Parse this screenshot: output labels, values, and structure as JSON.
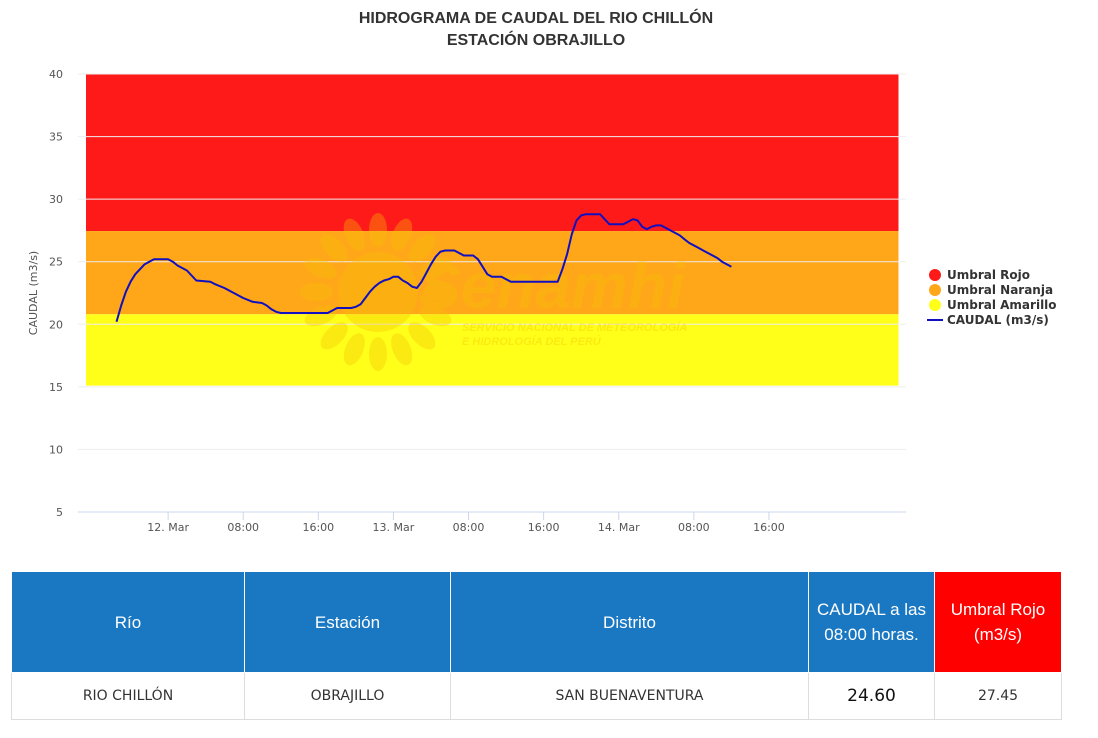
{
  "chart_data": {
    "type": "line",
    "title": "HIDROGRAMA DE CAUDAL DEL RIO CHILLÓN",
    "subtitle": "ESTACIÓN OBRAJILLO",
    "ylabel": "CAUDAL (m3/s)",
    "ylim": [
      5,
      40
    ],
    "yticks": [
      5,
      10,
      15,
      20,
      25,
      30,
      35,
      40
    ],
    "x_unit": "hours from 12 Mar 00:00",
    "xlim": [
      -9.6,
      78.6
    ],
    "xticks": [
      {
        "x": 0,
        "label": "12. Mar"
      },
      {
        "x": 8,
        "label": "08:00"
      },
      {
        "x": 16,
        "label": "16:00"
      },
      {
        "x": 24,
        "label": "13. Mar"
      },
      {
        "x": 32,
        "label": "08:00"
      },
      {
        "x": 40,
        "label": "16:00"
      },
      {
        "x": 48,
        "label": "14. Mar"
      },
      {
        "x": 56,
        "label": "08:00"
      },
      {
        "x": 64,
        "label": "16:00"
      }
    ],
    "bands": [
      {
        "name": "Umbral Rojo",
        "from": 27.45,
        "to": 40,
        "color": "#ff1a1a"
      },
      {
        "name": "Umbral Naranja",
        "from": 20.8,
        "to": 27.45,
        "color": "#ffa719"
      },
      {
        "name": "Umbral Amarillo",
        "from": 15.1,
        "to": 20.8,
        "color": "#ffff1a"
      }
    ],
    "bands_x_end": 77.8,
    "series": [
      {
        "name": "CAUDAL (m3/s)",
        "color": "#1010c0",
        "points": [
          [
            -5.5,
            20.2
          ],
          [
            -5.0,
            21.5
          ],
          [
            -4.5,
            22.6
          ],
          [
            -4.0,
            23.4
          ],
          [
            -3.5,
            24.0
          ],
          [
            -3.0,
            24.4
          ],
          [
            -2.5,
            24.8
          ],
          [
            -2.0,
            25.0
          ],
          [
            -1.5,
            25.2
          ],
          [
            -1.0,
            25.2
          ],
          [
            0.0,
            25.2
          ],
          [
            0.5,
            25.0
          ],
          [
            1.0,
            24.7
          ],
          [
            1.5,
            24.5
          ],
          [
            2.0,
            24.3
          ],
          [
            2.5,
            23.9
          ],
          [
            3.0,
            23.5
          ],
          [
            4.5,
            23.4
          ],
          [
            5.0,
            23.2
          ],
          [
            6.0,
            22.9
          ],
          [
            7.0,
            22.5
          ],
          [
            8.0,
            22.1
          ],
          [
            9.0,
            21.8
          ],
          [
            10.0,
            21.7
          ],
          [
            10.5,
            21.5
          ],
          [
            11.0,
            21.2
          ],
          [
            11.5,
            21.0
          ],
          [
            12.0,
            20.9
          ],
          [
            13.0,
            20.9
          ],
          [
            14.0,
            20.9
          ],
          [
            16.0,
            20.9
          ],
          [
            17.0,
            20.9
          ],
          [
            17.5,
            21.1
          ],
          [
            18.0,
            21.3
          ],
          [
            19.5,
            21.3
          ],
          [
            20.0,
            21.4
          ],
          [
            20.5,
            21.6
          ],
          [
            21.0,
            22.1
          ],
          [
            21.5,
            22.6
          ],
          [
            22.0,
            23.0
          ],
          [
            22.5,
            23.3
          ],
          [
            23.0,
            23.5
          ],
          [
            23.5,
            23.6
          ],
          [
            24.0,
            23.8
          ],
          [
            24.5,
            23.8
          ],
          [
            25.0,
            23.5
          ],
          [
            25.5,
            23.3
          ],
          [
            26.0,
            23.0
          ],
          [
            26.5,
            22.9
          ],
          [
            27.0,
            23.4
          ],
          [
            27.5,
            24.1
          ],
          [
            28.0,
            24.8
          ],
          [
            28.5,
            25.4
          ],
          [
            29.0,
            25.8
          ],
          [
            29.5,
            25.9
          ],
          [
            30.0,
            25.9
          ],
          [
            30.5,
            25.9
          ],
          [
            31.0,
            25.7
          ],
          [
            31.5,
            25.5
          ],
          [
            32.0,
            25.5
          ],
          [
            32.5,
            25.5
          ],
          [
            33.0,
            25.2
          ],
          [
            33.5,
            24.6
          ],
          [
            34.0,
            24.0
          ],
          [
            34.5,
            23.8
          ],
          [
            35.0,
            23.8
          ],
          [
            35.5,
            23.8
          ],
          [
            36.0,
            23.6
          ],
          [
            36.5,
            23.4
          ],
          [
            37.0,
            23.4
          ],
          [
            40.0,
            23.4
          ],
          [
            41.5,
            23.4
          ],
          [
            42.0,
            24.4
          ],
          [
            42.5,
            25.6
          ],
          [
            43.0,
            27.2
          ],
          [
            43.5,
            28.3
          ],
          [
            44.0,
            28.7
          ],
          [
            44.5,
            28.8
          ],
          [
            45.0,
            28.8
          ],
          [
            46.0,
            28.8
          ],
          [
            46.5,
            28.4
          ],
          [
            47.0,
            28.0
          ],
          [
            48.0,
            28.0
          ],
          [
            48.5,
            28.0
          ],
          [
            49.0,
            28.2
          ],
          [
            49.5,
            28.4
          ],
          [
            50.0,
            28.3
          ],
          [
            50.5,
            27.8
          ],
          [
            51.0,
            27.6
          ],
          [
            51.5,
            27.8
          ],
          [
            52.0,
            27.9
          ],
          [
            52.5,
            27.9
          ],
          [
            53.0,
            27.7
          ],
          [
            53.5,
            27.5
          ],
          [
            54.0,
            27.3
          ],
          [
            54.5,
            27.1
          ],
          [
            55.0,
            26.8
          ],
          [
            55.5,
            26.5
          ],
          [
            56.0,
            26.3
          ],
          [
            56.5,
            26.1
          ],
          [
            57.0,
            25.9
          ],
          [
            57.5,
            25.7
          ],
          [
            58.0,
            25.5
          ],
          [
            58.5,
            25.3
          ],
          [
            59.0,
            25.0
          ],
          [
            59.5,
            24.8
          ],
          [
            60.0,
            24.6
          ]
        ]
      }
    ],
    "legend": {
      "position": "right",
      "items": [
        {
          "label": "Umbral Rojo",
          "color": "#ff1a1a",
          "kind": "dot"
        },
        {
          "label": "Umbral Naranja",
          "color": "#ffa719",
          "kind": "dot"
        },
        {
          "label": "Umbral Amarillo",
          "color": "#ffff1a",
          "kind": "dot"
        },
        {
          "label": "CAUDAL (m3/s)",
          "color": "#1010c0",
          "kind": "line"
        }
      ]
    },
    "grid": true
  },
  "watermark": {
    "brand": "Senamhi",
    "line1": "SERVICIO NACIONAL DE METEOROLOGÍA",
    "line2": "E HIDROLOGÍA DEL PERÚ",
    "color": "#f5c000"
  },
  "table": {
    "headers": [
      "Río",
      "Estación",
      "Distrito",
      "CAUDAL a las 08:00 horas.",
      "Umbral Rojo (m3/s)"
    ],
    "header_colors": [
      "#1a78c2",
      "#1a78c2",
      "#1a78c2",
      "#1a78c2",
      "#ff0000"
    ],
    "row": [
      "RIO CHILLÓN",
      "OBRAJILLO",
      "SAN BUENAVENTURA",
      "24.60",
      "27.45"
    ]
  }
}
